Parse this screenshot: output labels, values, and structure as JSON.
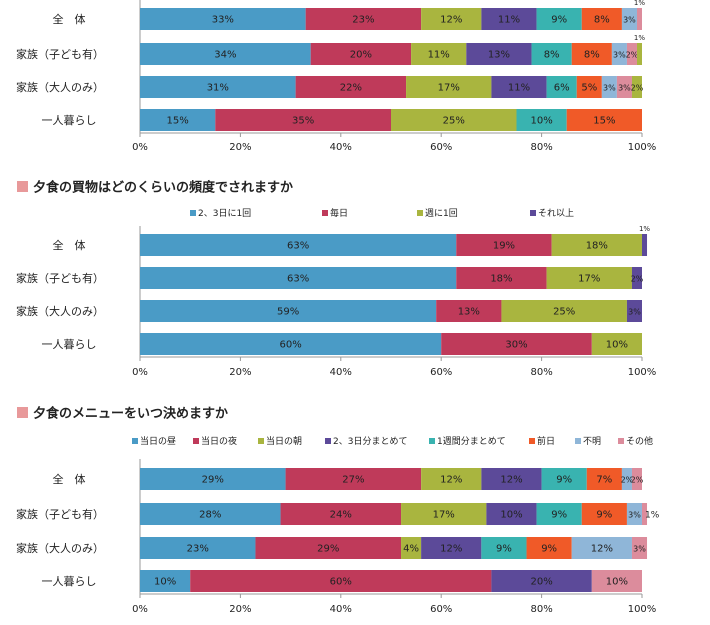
{
  "colors": {
    "blue": "#4a9bc6",
    "crimson": "#bf3a5a",
    "olive": "#a9b53f",
    "purple": "#5c4a99",
    "teal": "#39b3b0",
    "orange": "#f05a28",
    "lightblue": "#8fb6d8",
    "pink": "#dc8c9c",
    "heading_square": "#e8999a"
  },
  "chart_data": [
    {
      "type": "bar",
      "stacked": true,
      "orientation": "horizontal",
      "title": "",
      "categories": [
        "全　体",
        "家族（子ども有）",
        "家族（大人のみ）",
        "一人暮らし"
      ],
      "xlim": [
        0,
        100
      ],
      "x_ticks": [
        "0%",
        "20%",
        "40%",
        "60%",
        "80%",
        "100%"
      ],
      "grid": false,
      "legend": "none",
      "series": [
        {
          "color": "blue",
          "values": [
            33,
            34,
            31,
            15
          ],
          "labels": [
            "33%",
            "34%",
            "31%",
            "15%"
          ]
        },
        {
          "color": "crimson",
          "values": [
            23,
            20,
            22,
            35
          ],
          "labels": [
            "23%",
            "20%",
            "22%",
            "35%"
          ]
        },
        {
          "color": "olive",
          "values": [
            12,
            11,
            17,
            25
          ],
          "labels": [
            "12%",
            "11%",
            "17%",
            "25%"
          ]
        },
        {
          "color": "purple",
          "values": [
            11,
            13,
            11,
            0
          ],
          "labels": [
            "11%",
            "13%",
            "11%",
            ""
          ]
        },
        {
          "color": "teal",
          "values": [
            9,
            8,
            6,
            10
          ],
          "labels": [
            "9%",
            "8%",
            "6%",
            "10%"
          ]
        },
        {
          "color": "orange",
          "values": [
            8,
            8,
            5,
            15
          ],
          "labels": [
            "8%",
            "8%",
            "5%",
            "15%"
          ]
        },
        {
          "color": "lightblue",
          "values": [
            3,
            3,
            3,
            0
          ],
          "labels": [
            "3%",
            "3%",
            "3%",
            ""
          ]
        },
        {
          "color": "pink",
          "values": [
            1,
            2,
            3,
            0
          ],
          "labels": [
            "1%",
            "2%",
            "3%",
            ""
          ]
        },
        {
          "color": "olive",
          "values": [
            0,
            1,
            2,
            0
          ],
          "labels": [
            "",
            "1%",
            "2%",
            ""
          ]
        }
      ]
    },
    {
      "type": "bar",
      "stacked": true,
      "orientation": "horizontal",
      "title": "夕食の買物はどのくらいの頻度でされますか",
      "categories": [
        "全　体",
        "家族（子ども有）",
        "家族（大人のみ）",
        "一人暮らし"
      ],
      "xlim": [
        0,
        100
      ],
      "x_ticks": [
        "0%",
        "20%",
        "40%",
        "60%",
        "80%",
        "100%"
      ],
      "grid": false,
      "legend": "top",
      "series": [
        {
          "name": "2、3日に1回",
          "color": "blue",
          "values": [
            63,
            63,
            59,
            60
          ],
          "labels": [
            "63%",
            "63%",
            "59%",
            "60%"
          ]
        },
        {
          "name": "毎日",
          "color": "crimson",
          "values": [
            19,
            18,
            13,
            30
          ],
          "labels": [
            "19%",
            "18%",
            "13%",
            "30%"
          ]
        },
        {
          "name": "週に1回",
          "color": "olive",
          "values": [
            18,
            17,
            25,
            10
          ],
          "labels": [
            "18%",
            "17%",
            "25%",
            "10%"
          ]
        },
        {
          "name": "それ以上",
          "color": "purple",
          "values": [
            1,
            2,
            3,
            0
          ],
          "labels": [
            "1%",
            "2%",
            "3%",
            ""
          ]
        }
      ]
    },
    {
      "type": "bar",
      "stacked": true,
      "orientation": "horizontal",
      "title": "夕食のメニューをいつ決めますか",
      "categories": [
        "全　体",
        "家族（子ども有）",
        "家族（大人のみ）",
        "一人暮らし"
      ],
      "xlim": [
        0,
        100
      ],
      "x_ticks": [
        "0%",
        "20%",
        "40%",
        "60%",
        "80%",
        "100%"
      ],
      "grid": false,
      "legend": "top",
      "series": [
        {
          "name": "当日の昼",
          "color": "blue",
          "values": [
            29,
            28,
            23,
            10
          ],
          "labels": [
            "29%",
            "28%",
            "23%",
            "10%"
          ]
        },
        {
          "name": "当日の夜",
          "color": "crimson",
          "values": [
            27,
            24,
            29,
            60
          ],
          "labels": [
            "27%",
            "24%",
            "29%",
            "60%"
          ]
        },
        {
          "name": "当日の朝",
          "color": "olive",
          "values": [
            12,
            17,
            4,
            0
          ],
          "labels": [
            "12%",
            "17%",
            "4%",
            ""
          ]
        },
        {
          "name": "2、3日分まとめて",
          "color": "purple",
          "values": [
            12,
            10,
            12,
            20
          ],
          "labels": [
            "12%",
            "10%",
            "12%",
            "20%"
          ]
        },
        {
          "name": "1週間分まとめて",
          "color": "teal",
          "values": [
            9,
            9,
            9,
            0
          ],
          "labels": [
            "9%",
            "9%",
            "9%",
            ""
          ]
        },
        {
          "name": "前日",
          "color": "orange",
          "values": [
            7,
            9,
            9,
            0
          ],
          "labels": [
            "7%",
            "9%",
            "9%",
            ""
          ]
        },
        {
          "name": "不明",
          "color": "lightblue",
          "values": [
            2,
            3,
            12,
            0
          ],
          "labels": [
            "2%",
            "3%",
            "12%",
            ""
          ]
        },
        {
          "name": "その他",
          "color": "pink",
          "values": [
            2,
            1,
            3,
            10
          ],
          "labels": [
            "2%",
            "1%",
            "3%",
            "10%"
          ]
        }
      ]
    }
  ]
}
